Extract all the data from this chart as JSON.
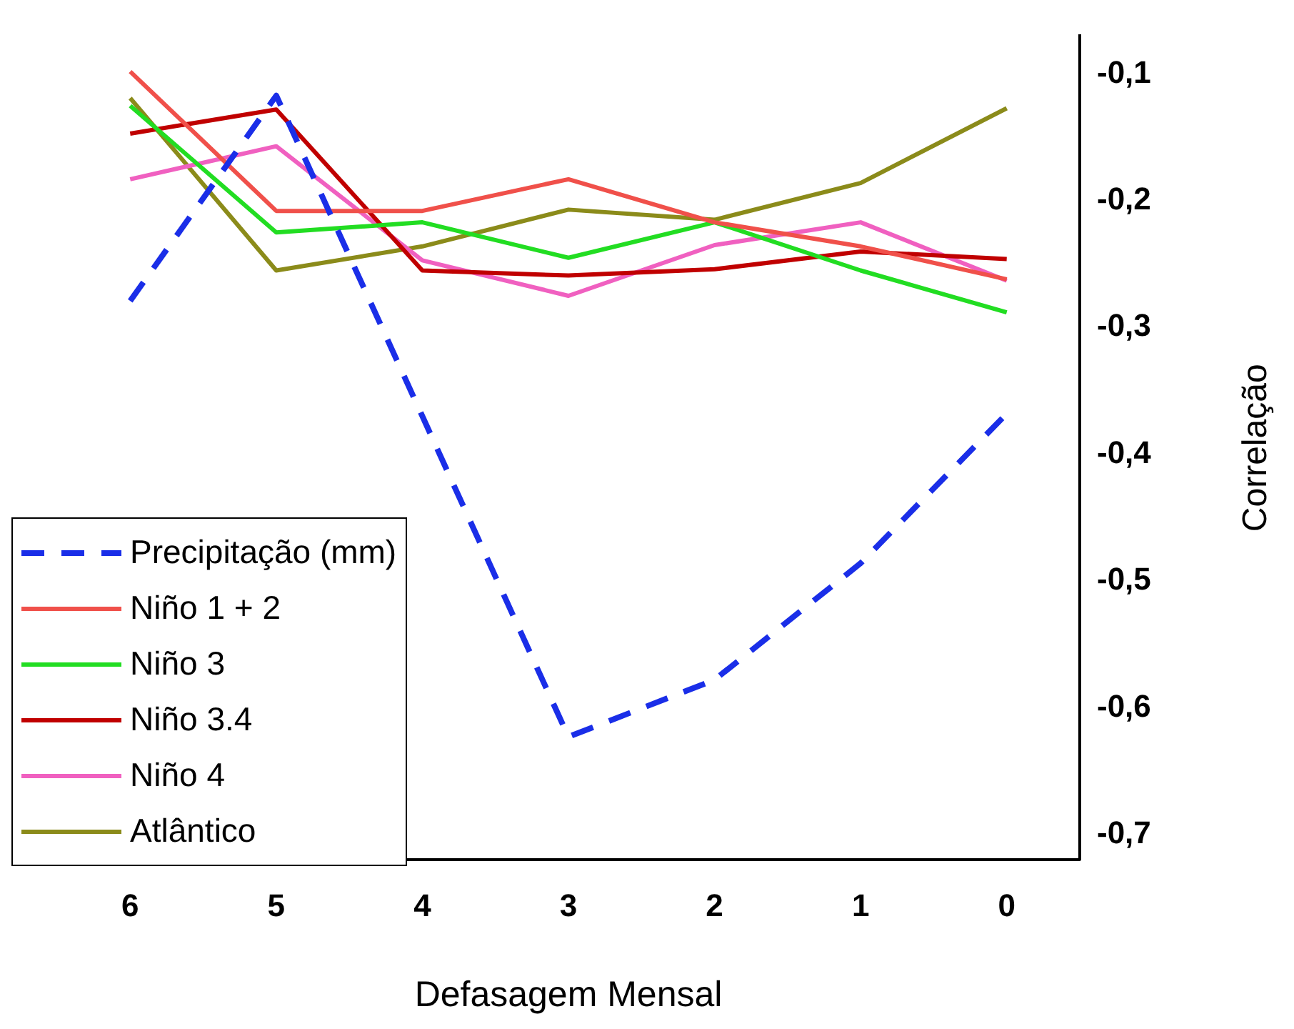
{
  "chart_data": {
    "type": "line",
    "xlabel": "Defasagem Mensal",
    "ylabel": "Correlação",
    "categories": [
      "6",
      "5",
      "4",
      "3",
      "2",
      "1",
      "0"
    ],
    "ylim": [
      -0.72,
      -0.07
    ],
    "yticks": [
      {
        "value": -0.1,
        "label": "-0,1"
      },
      {
        "value": -0.2,
        "label": "-0,2"
      },
      {
        "value": -0.3,
        "label": "-0,3"
      },
      {
        "value": -0.4,
        "label": "-0,4"
      },
      {
        "value": -0.5,
        "label": "-0,5"
      },
      {
        "value": -0.6,
        "label": "-0,6"
      },
      {
        "value": -0.7,
        "label": "-0,7"
      }
    ],
    "grid": false,
    "legend": "bottom left",
    "marker": "none",
    "series": [
      {
        "name": "Precipitação (mm)",
        "color": "#1a2ee8",
        "line_style": "dashed",
        "values": [
          -0.279,
          -0.117,
          -0.37,
          -0.623,
          -0.578,
          -0.486,
          -0.368
        ]
      },
      {
        "name": "Niño 1 + 2",
        "color": "#f0504a",
        "line_style": "solid",
        "values": [
          -0.098,
          -0.208,
          -0.208,
          -0.183,
          -0.217,
          -0.236,
          -0.262
        ]
      },
      {
        "name": "Niño 3",
        "color": "#22dd22",
        "line_style": "solid",
        "values": [
          -0.125,
          -0.225,
          -0.217,
          -0.245,
          -0.217,
          -0.255,
          -0.288
        ]
      },
      {
        "name": "Niño 3.4",
        "color": "#c00000",
        "line_style": "solid",
        "values": [
          -0.147,
          -0.128,
          -0.255,
          -0.259,
          -0.254,
          -0.24,
          -0.246
        ]
      },
      {
        "name": "Niño 4",
        "color": "#f060c0",
        "line_style": "solid",
        "values": [
          -0.183,
          -0.157,
          -0.247,
          -0.275,
          -0.235,
          -0.217,
          -0.263
        ]
      },
      {
        "name": "Atlântico",
        "color": "#8b8b1a",
        "line_style": "solid",
        "values": [
          -0.119,
          -0.255,
          -0.236,
          -0.207,
          -0.215,
          -0.186,
          -0.127
        ]
      }
    ]
  }
}
